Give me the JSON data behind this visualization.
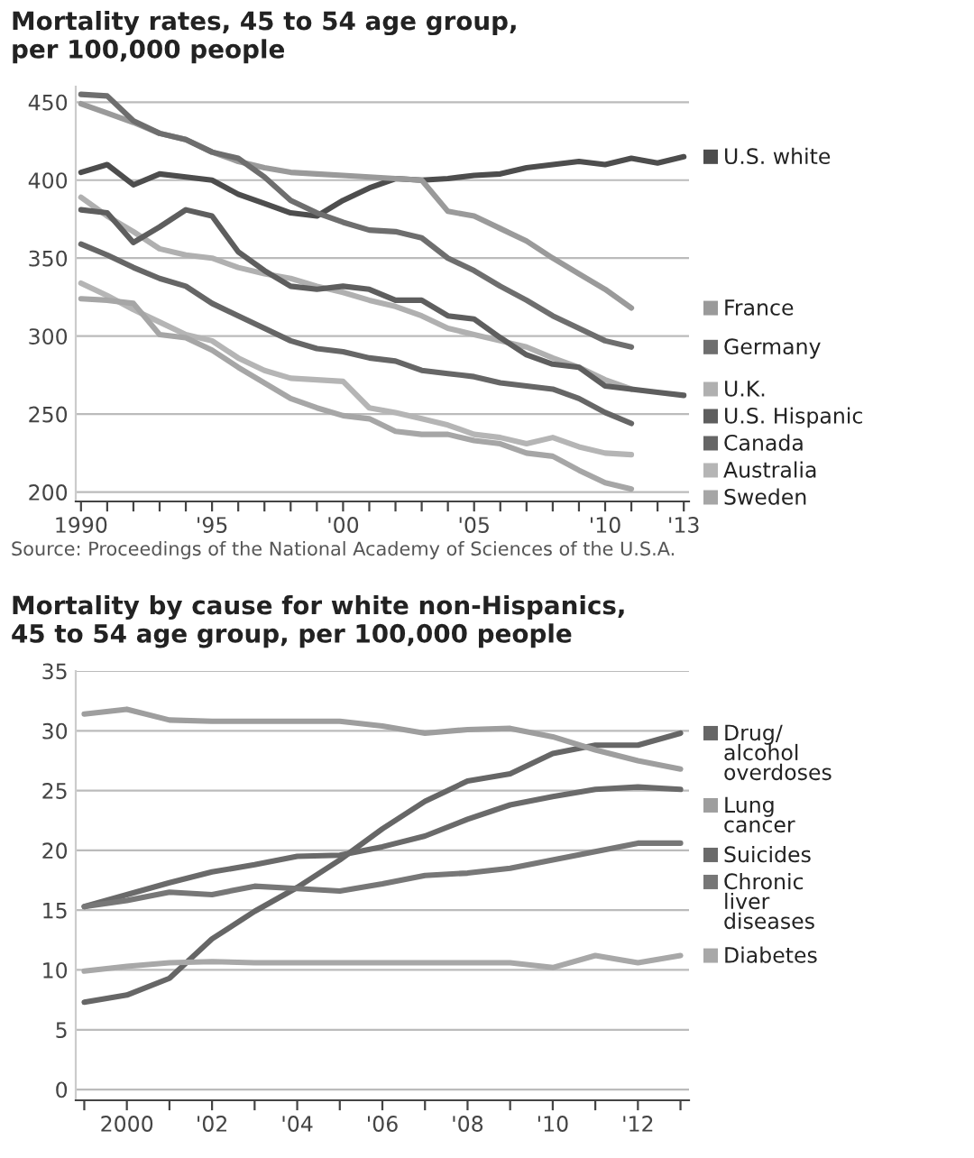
{
  "chart_data": [
    {
      "type": "line",
      "title": "Mortality rates, 45 to 54 age group,\nper 100,000 people",
      "x": [
        1990,
        1991,
        1992,
        1993,
        1994,
        1995,
        1996,
        1997,
        1998,
        1999,
        2000,
        2001,
        2002,
        2003,
        2004,
        2005,
        2006,
        2007,
        2008,
        2009,
        2010,
        2011,
        2012,
        2013
      ],
      "xlim": [
        1989.8,
        2013.2
      ],
      "xticks": [
        {
          "value": 1990,
          "label": "1990"
        },
        {
          "value": 1991,
          "label": null
        },
        {
          "value": 1992,
          "label": null
        },
        {
          "value": 1993,
          "label": null
        },
        {
          "value": 1994,
          "label": null
        },
        {
          "value": 1995,
          "label": "'95"
        },
        {
          "value": 1996,
          "label": null
        },
        {
          "value": 1997,
          "label": null
        },
        {
          "value": 1998,
          "label": null
        },
        {
          "value": 1999,
          "label": null
        },
        {
          "value": 2000,
          "label": "'00"
        },
        {
          "value": 2001,
          "label": null
        },
        {
          "value": 2002,
          "label": null
        },
        {
          "value": 2003,
          "label": null
        },
        {
          "value": 2004,
          "label": null
        },
        {
          "value": 2005,
          "label": "'05"
        },
        {
          "value": 2006,
          "label": null
        },
        {
          "value": 2007,
          "label": null
        },
        {
          "value": 2008,
          "label": null
        },
        {
          "value": 2009,
          "label": null
        },
        {
          "value": 2010,
          "label": "'10"
        },
        {
          "value": 2011,
          "label": null
        },
        {
          "value": 2012,
          "label": null
        },
        {
          "value": 2013,
          "label": "'13"
        }
      ],
      "ylim": [
        194,
        460
      ],
      "yticks": [
        200,
        250,
        300,
        350,
        400,
        450
      ],
      "grid": "y",
      "legend": "right",
      "series": [
        {
          "name": "U.S. white",
          "color": "#4d4d4d",
          "values": [
            405,
            410,
            397,
            404,
            402,
            400,
            391,
            385,
            379,
            377,
            387,
            395,
            401,
            400,
            401,
            403,
            404,
            408,
            410,
            412,
            410,
            414,
            411,
            415
          ]
        },
        {
          "name": "France",
          "color": "#9a9a9a",
          "values": [
            449,
            443,
            437,
            430,
            426,
            418,
            412,
            408,
            405,
            404,
            403,
            402,
            401,
            400,
            380,
            377,
            369,
            361,
            350,
            340,
            330,
            318,
            null,
            null
          ]
        },
        {
          "name": "Germany",
          "color": "#6e6e6e",
          "values": [
            455,
            454,
            438,
            430,
            426,
            418,
            414,
            402,
            387,
            379,
            373,
            368,
            367,
            363,
            350,
            342,
            332,
            323,
            313,
            305,
            297,
            293,
            null,
            null
          ]
        },
        {
          "name": "U.K.",
          "color": "#b0b0b0",
          "values": [
            389,
            377,
            367,
            356,
            352,
            350,
            344,
            340,
            337,
            332,
            328,
            323,
            319,
            313,
            305,
            301,
            297,
            293,
            286,
            280,
            272,
            266,
            null,
            null
          ]
        },
        {
          "name": "U.S. Hispanic",
          "color": "#5e5e5e",
          "values": [
            381,
            379,
            360,
            370,
            381,
            377,
            354,
            342,
            332,
            330,
            332,
            330,
            323,
            323,
            313,
            311,
            299,
            288,
            282,
            280,
            268,
            266,
            264,
            262
          ]
        },
        {
          "name": "Canada",
          "color": "#666666",
          "values": [
            359,
            352,
            344,
            337,
            332,
            321,
            313,
            305,
            297,
            292,
            290,
            286,
            284,
            278,
            276,
            274,
            270,
            268,
            266,
            260,
            251,
            244,
            null,
            null
          ]
        },
        {
          "name": "Australia",
          "color": "#b5b5b5",
          "values": [
            334,
            326,
            317,
            309,
            301,
            297,
            286,
            278,
            273,
            272,
            271,
            254,
            251,
            247,
            243,
            237,
            235,
            231,
            235,
            229,
            225,
            224,
            null,
            null
          ]
        },
        {
          "name": "Sweden",
          "color": "#a6a6a6",
          "values": [
            324,
            323,
            321,
            301,
            299,
            291,
            280,
            270,
            260,
            254,
            249,
            247,
            239,
            237,
            237,
            233,
            231,
            225,
            223,
            214,
            206,
            202,
            null,
            null
          ]
        }
      ],
      "annotations": [
        "Source: Proceedings of the National Academy of Sciences of the U.S.A."
      ]
    },
    {
      "type": "line",
      "title": "Mortality by cause for white non-Hispanics,\n45 to 54 age group, per 100,000 people",
      "x": [
        1999,
        2000,
        2001,
        2002,
        2003,
        2004,
        2005,
        2006,
        2007,
        2008,
        2009,
        2010,
        2011,
        2012,
        2013
      ],
      "xlim": [
        1998.8,
        2013.2
      ],
      "xticks": [
        {
          "value": 1999,
          "label": null
        },
        {
          "value": 2000,
          "label": "2000"
        },
        {
          "value": 2001,
          "label": null
        },
        {
          "value": 2002,
          "label": "'02"
        },
        {
          "value": 2003,
          "label": null
        },
        {
          "value": 2004,
          "label": "'04"
        },
        {
          "value": 2005,
          "label": null
        },
        {
          "value": 2006,
          "label": "'06"
        },
        {
          "value": 2007,
          "label": null
        },
        {
          "value": 2008,
          "label": "'08"
        },
        {
          "value": 2009,
          "label": null
        },
        {
          "value": 2010,
          "label": "'10"
        },
        {
          "value": 2011,
          "label": null
        },
        {
          "value": 2012,
          "label": "'12"
        },
        {
          "value": 2013,
          "label": null
        }
      ],
      "ylim": [
        -0.9,
        35
      ],
      "yticks": [
        0,
        5,
        10,
        15,
        20,
        25,
        30,
        35
      ],
      "grid": "y",
      "legend": "right",
      "series": [
        {
          "name": "Drug/\nalcohol\noverdoses",
          "color": "#666666",
          "values": [
            7.3,
            7.9,
            9.3,
            12.6,
            14.9,
            16.9,
            19.2,
            21.8,
            24.1,
            25.8,
            26.4,
            28.1,
            28.8,
            28.8,
            29.8
          ]
        },
        {
          "name": "Lung\ncancer",
          "color": "#9e9e9e",
          "values": [
            31.4,
            31.8,
            30.9,
            30.8,
            30.8,
            30.8,
            30.8,
            30.4,
            29.8,
            30.1,
            30.2,
            29.5,
            28.4,
            27.5,
            26.8
          ]
        },
        {
          "name": "Suicides",
          "color": "#6a6a6a",
          "values": [
            15.3,
            16.3,
            17.3,
            18.2,
            18.8,
            19.5,
            19.6,
            20.3,
            21.2,
            22.6,
            23.8,
            24.5,
            25.1,
            25.3,
            25.1
          ]
        },
        {
          "name": "Chronic\nliver\ndiseases",
          "color": "#777777",
          "values": [
            15.3,
            15.8,
            16.5,
            16.3,
            17.0,
            16.8,
            16.6,
            17.2,
            17.9,
            18.1,
            18.5,
            19.2,
            19.9,
            20.6,
            20.6
          ]
        },
        {
          "name": "Diabetes",
          "color": "#a8a8a8",
          "values": [
            9.9,
            10.3,
            10.6,
            10.7,
            10.6,
            10.6,
            10.6,
            10.6,
            10.6,
            10.6,
            10.6,
            10.2,
            11.2,
            10.6,
            11.2
          ]
        }
      ]
    }
  ]
}
